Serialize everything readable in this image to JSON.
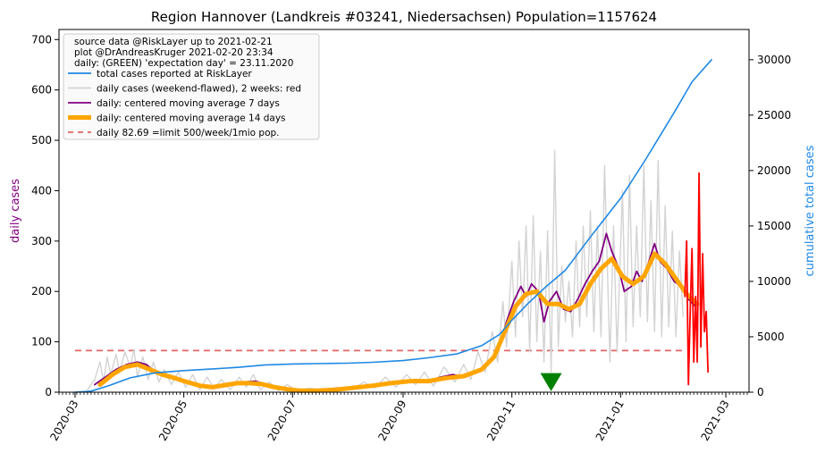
{
  "chart_data": {
    "type": "line",
    "title": "Region Hannover (Landkreis #03241, Niedersachsen) Population=1157624",
    "ylabel_left": "daily cases",
    "ylabel_right": "cumulative total cases",
    "ylim_left": [
      0,
      720
    ],
    "ylim_right": [
      0,
      32727
    ],
    "xlim": [
      "2020-02-21",
      "2021-03-14"
    ],
    "x_ticks": [
      "2020-03",
      "2020-05",
      "2020-07",
      "2020-09",
      "2020-11",
      "2021-01",
      "2021-03"
    ],
    "y_ticks_left": [
      0,
      100,
      200,
      300,
      400,
      500,
      600,
      700
    ],
    "y_ticks_right": [
      0,
      5000,
      10000,
      15000,
      20000,
      25000,
      30000
    ],
    "grid": false,
    "legend_position": "top-left",
    "legend_header": [
      "source data @RiskLayer up to 2021-02-21",
      "plot @DrAndreasKruger 2021-02-20 23:34",
      "daily: (GREEN) 'expectation day' = 23.11.2020"
    ],
    "legend": [
      {
        "label": "total cases reported at RiskLayer",
        "color": "#1e88e5",
        "style": "solid"
      },
      {
        "label": "daily cases (weekend-flawed), 2 weeks: red",
        "color": "#d3d3d3",
        "style": "solid"
      },
      {
        "label": "daily: centered moving average 7 days",
        "color": "#800080",
        "style": "solid"
      },
      {
        "label": "daily: centered moving average 14 days",
        "color": "#ffa500",
        "style": "thick"
      },
      {
        "label": "daily 82.69 =limit 500/week/1mio pop.",
        "color": "#e06666",
        "style": "dashed"
      }
    ],
    "limit_line": {
      "value": 82.69,
      "x_start": "2020-03-01",
      "x_end": "2021-02-06"
    },
    "expectation_day": "2020-11-23",
    "series": [
      {
        "name": "total cases reported at RiskLayer",
        "axis": "right",
        "color": "#1e88e5",
        "points": [
          [
            "2020-03-01",
            0
          ],
          [
            "2020-03-10",
            100
          ],
          [
            "2020-03-20",
            600
          ],
          [
            "2020-04-01",
            1300
          ],
          [
            "2020-04-15",
            1750
          ],
          [
            "2020-05-01",
            1950
          ],
          [
            "2020-05-15",
            2080
          ],
          [
            "2020-06-01",
            2250
          ],
          [
            "2020-06-15",
            2450
          ],
          [
            "2020-07-01",
            2550
          ],
          [
            "2020-07-15",
            2580
          ],
          [
            "2020-08-01",
            2620
          ],
          [
            "2020-08-15",
            2700
          ],
          [
            "2020-09-01",
            2850
          ],
          [
            "2020-09-15",
            3100
          ],
          [
            "2020-10-01",
            3450
          ],
          [
            "2020-10-15",
            4200
          ],
          [
            "2020-10-25",
            5200
          ],
          [
            "2020-11-01",
            6500
          ],
          [
            "2020-11-10",
            8000
          ],
          [
            "2020-11-20",
            9500
          ],
          [
            "2020-12-01",
            11000
          ],
          [
            "2020-12-15",
            14000
          ],
          [
            "2021-01-01",
            17500
          ],
          [
            "2021-01-15",
            21000
          ],
          [
            "2021-02-01",
            25500
          ],
          [
            "2021-02-10",
            28000
          ],
          [
            "2021-02-21",
            30000
          ]
        ]
      },
      {
        "name": "daily cases (weekend-flawed)",
        "axis": "left",
        "color": "#d3d3d3",
        "points": [
          [
            "2020-03-08",
            5
          ],
          [
            "2020-03-12",
            25
          ],
          [
            "2020-03-15",
            60
          ],
          [
            "2020-03-17",
            20
          ],
          [
            "2020-03-19",
            70
          ],
          [
            "2020-03-21",
            35
          ],
          [
            "2020-03-24",
            75
          ],
          [
            "2020-03-26",
            40
          ],
          [
            "2020-03-29",
            80
          ],
          [
            "2020-04-01",
            50
          ],
          [
            "2020-04-03",
            85
          ],
          [
            "2020-04-05",
            30
          ],
          [
            "2020-04-08",
            70
          ],
          [
            "2020-04-11",
            25
          ],
          [
            "2020-04-14",
            60
          ],
          [
            "2020-04-17",
            20
          ],
          [
            "2020-04-20",
            45
          ],
          [
            "2020-04-24",
            15
          ],
          [
            "2020-04-28",
            40
          ],
          [
            "2020-05-02",
            10
          ],
          [
            "2020-05-06",
            35
          ],
          [
            "2020-05-10",
            5
          ],
          [
            "2020-05-14",
            30
          ],
          [
            "2020-05-18",
            8
          ],
          [
            "2020-05-22",
            25
          ],
          [
            "2020-05-27",
            5
          ],
          [
            "2020-06-01",
            30
          ],
          [
            "2020-06-05",
            10
          ],
          [
            "2020-06-09",
            35
          ],
          [
            "2020-06-13",
            5
          ],
          [
            "2020-06-18",
            20
          ],
          [
            "2020-06-23",
            3
          ],
          [
            "2020-06-28",
            15
          ],
          [
            "2020-07-04",
            2
          ],
          [
            "2020-07-10",
            8
          ],
          [
            "2020-07-18",
            4
          ],
          [
            "2020-07-26",
            10
          ],
          [
            "2020-08-03",
            5
          ],
          [
            "2020-08-10",
            20
          ],
          [
            "2020-08-16",
            8
          ],
          [
            "2020-08-22",
            30
          ],
          [
            "2020-08-28",
            10
          ],
          [
            "2020-09-03",
            35
          ],
          [
            "2020-09-08",
            15
          ],
          [
            "2020-09-13",
            40
          ],
          [
            "2020-09-18",
            12
          ],
          [
            "2020-09-24",
            50
          ],
          [
            "2020-09-30",
            20
          ],
          [
            "2020-10-05",
            55
          ],
          [
            "2020-10-09",
            25
          ],
          [
            "2020-10-13",
            80
          ],
          [
            "2020-10-17",
            40
          ],
          [
            "2020-10-21",
            120
          ],
          [
            "2020-10-24",
            60
          ],
          [
            "2020-10-27",
            180
          ],
          [
            "2020-10-29",
            90
          ],
          [
            "2020-11-01",
            260
          ],
          [
            "2020-11-03",
            110
          ],
          [
            "2020-11-05",
            300
          ],
          [
            "2020-11-07",
            150
          ],
          [
            "2020-11-09",
            330
          ],
          [
            "2020-11-11",
            80
          ],
          [
            "2020-11-13",
            350
          ],
          [
            "2020-11-15",
            100
          ],
          [
            "2020-11-17",
            280
          ],
          [
            "2020-11-19",
            60
          ],
          [
            "2020-11-21",
            320
          ],
          [
            "2020-11-23",
            40
          ],
          [
            "2020-11-25",
            480
          ],
          [
            "2020-11-27",
            90
          ],
          [
            "2020-11-29",
            250
          ],
          [
            "2020-12-01",
            140
          ],
          [
            "2020-12-03",
            220
          ],
          [
            "2020-12-05",
            110
          ],
          [
            "2020-12-07",
            300
          ],
          [
            "2020-12-09",
            130
          ],
          [
            "2020-12-11",
            330
          ],
          [
            "2020-12-13",
            150
          ],
          [
            "2020-12-15",
            360
          ],
          [
            "2020-12-17",
            120
          ],
          [
            "2020-12-19",
            330
          ],
          [
            "2020-12-21",
            110
          ],
          [
            "2020-12-23",
            450
          ],
          [
            "2020-12-26",
            60
          ],
          [
            "2020-12-28",
            330
          ],
          [
            "2020-12-30",
            80
          ],
          [
            "2021-01-02",
            400
          ],
          [
            "2021-01-04",
            100
          ],
          [
            "2021-01-06",
            430
          ],
          [
            "2021-01-08",
            130
          ],
          [
            "2021-01-10",
            330
          ],
          [
            "2021-01-12",
            150
          ],
          [
            "2021-01-14",
            450
          ],
          [
            "2021-01-16",
            140
          ],
          [
            "2021-01-18",
            380
          ],
          [
            "2021-01-20",
            120
          ],
          [
            "2021-01-22",
            460
          ],
          [
            "2021-01-24",
            110
          ],
          [
            "2021-01-26",
            370
          ],
          [
            "2021-01-28",
            130
          ],
          [
            "2021-01-30",
            320
          ],
          [
            "2021-02-01",
            110
          ],
          [
            "2021-02-03",
            280
          ],
          [
            "2021-02-05",
            150
          ]
        ]
      },
      {
        "name": "daily cases last 2 weeks",
        "axis": "left",
        "color": "#ff0000",
        "points": [
          [
            "2021-02-06",
            190
          ],
          [
            "2021-02-07",
            300
          ],
          [
            "2021-02-08",
            15
          ],
          [
            "2021-02-09",
            160
          ],
          [
            "2021-02-10",
            285
          ],
          [
            "2021-02-11",
            60
          ],
          [
            "2021-02-12",
            190
          ],
          [
            "2021-02-13",
            60
          ],
          [
            "2021-02-14",
            435
          ],
          [
            "2021-02-15",
            90
          ],
          [
            "2021-02-16",
            275
          ],
          [
            "2021-02-17",
            120
          ],
          [
            "2021-02-18",
            160
          ],
          [
            "2021-02-19",
            40
          ]
        ]
      },
      {
        "name": "daily: centered moving average 7 days",
        "axis": "left",
        "color": "#800080",
        "points": [
          [
            "2020-03-12",
            15
          ],
          [
            "2020-03-18",
            30
          ],
          [
            "2020-03-24",
            45
          ],
          [
            "2020-03-30",
            55
          ],
          [
            "2020-04-05",
            60
          ],
          [
            "2020-04-10",
            55
          ],
          [
            "2020-04-15",
            40
          ],
          [
            "2020-04-20",
            32
          ],
          [
            "2020-04-25",
            28
          ],
          [
            "2020-05-01",
            22
          ],
          [
            "2020-05-08",
            15
          ],
          [
            "2020-05-15",
            10
          ],
          [
            "2020-05-22",
            12
          ],
          [
            "2020-05-28",
            15
          ],
          [
            "2020-06-03",
            20
          ],
          [
            "2020-06-10",
            22
          ],
          [
            "2020-06-17",
            15
          ],
          [
            "2020-06-24",
            8
          ],
          [
            "2020-07-01",
            5
          ],
          [
            "2020-07-10",
            3
          ],
          [
            "2020-07-20",
            4
          ],
          [
            "2020-07-30",
            6
          ],
          [
            "2020-08-08",
            10
          ],
          [
            "2020-08-16",
            14
          ],
          [
            "2020-08-24",
            18
          ],
          [
            "2020-09-01",
            22
          ],
          [
            "2020-09-08",
            25
          ],
          [
            "2020-09-15",
            22
          ],
          [
            "2020-09-22",
            30
          ],
          [
            "2020-09-29",
            35
          ],
          [
            "2020-10-06",
            30
          ],
          [
            "2020-10-12",
            40
          ],
          [
            "2020-10-18",
            55
          ],
          [
            "2020-10-24",
            80
          ],
          [
            "2020-10-29",
            140
          ],
          [
            "2020-11-02",
            180
          ],
          [
            "2020-11-06",
            210
          ],
          [
            "2020-11-09",
            190
          ],
          [
            "2020-11-12",
            215
          ],
          [
            "2020-11-16",
            200
          ],
          [
            "2020-11-19",
            140
          ],
          [
            "2020-11-22",
            180
          ],
          [
            "2020-11-26",
            200
          ],
          [
            "2020-11-30",
            165
          ],
          [
            "2020-12-04",
            160
          ],
          [
            "2020-12-08",
            185
          ],
          [
            "2020-12-12",
            215
          ],
          [
            "2020-12-16",
            240
          ],
          [
            "2020-12-20",
            260
          ],
          [
            "2020-12-24",
            315
          ],
          [
            "2020-12-27",
            280
          ],
          [
            "2020-12-31",
            245
          ],
          [
            "2021-01-03",
            200
          ],
          [
            "2021-01-07",
            210
          ],
          [
            "2021-01-10",
            240
          ],
          [
            "2021-01-13",
            220
          ],
          [
            "2021-01-16",
            250
          ],
          [
            "2021-01-20",
            295
          ],
          [
            "2021-01-23",
            260
          ],
          [
            "2021-01-27",
            245
          ],
          [
            "2021-01-31",
            220
          ],
          [
            "2021-02-04",
            210
          ],
          [
            "2021-02-08",
            185
          ],
          [
            "2021-02-12",
            170
          ]
        ]
      },
      {
        "name": "daily: centered moving average 14 days",
        "axis": "left",
        "color": "#ffa500",
        "points": [
          [
            "2020-03-15",
            15
          ],
          [
            "2020-03-22",
            35
          ],
          [
            "2020-03-29",
            50
          ],
          [
            "2020-04-05",
            55
          ],
          [
            "2020-04-12",
            45
          ],
          [
            "2020-04-19",
            35
          ],
          [
            "2020-04-26",
            28
          ],
          [
            "2020-05-03",
            20
          ],
          [
            "2020-05-10",
            13
          ],
          [
            "2020-05-17",
            10
          ],
          [
            "2020-05-24",
            14
          ],
          [
            "2020-05-31",
            18
          ],
          [
            "2020-06-07",
            18
          ],
          [
            "2020-06-14",
            16
          ],
          [
            "2020-06-21",
            10
          ],
          [
            "2020-06-28",
            6
          ],
          [
            "2020-07-05",
            3
          ],
          [
            "2020-07-15",
            3
          ],
          [
            "2020-07-25",
            5
          ],
          [
            "2020-08-05",
            9
          ],
          [
            "2020-08-15",
            13
          ],
          [
            "2020-08-25",
            18
          ],
          [
            "2020-09-05",
            22
          ],
          [
            "2020-09-15",
            22
          ],
          [
            "2020-09-25",
            28
          ],
          [
            "2020-10-05",
            32
          ],
          [
            "2020-10-15",
            45
          ],
          [
            "2020-10-22",
            70
          ],
          [
            "2020-10-28",
            120
          ],
          [
            "2020-11-03",
            170
          ],
          [
            "2020-11-09",
            195
          ],
          [
            "2020-11-15",
            200
          ],
          [
            "2020-11-21",
            175
          ],
          [
            "2020-11-27",
            175
          ],
          [
            "2020-12-03",
            165
          ],
          [
            "2020-12-09",
            175
          ],
          [
            "2020-12-15",
            215
          ],
          [
            "2020-12-21",
            245
          ],
          [
            "2020-12-27",
            265
          ],
          [
            "2021-01-02",
            230
          ],
          [
            "2021-01-08",
            215
          ],
          [
            "2021-01-14",
            230
          ],
          [
            "2021-01-20",
            275
          ],
          [
            "2021-01-26",
            255
          ],
          [
            "2021-02-01",
            225
          ],
          [
            "2021-02-07",
            195
          ],
          [
            "2021-02-13",
            175
          ]
        ]
      }
    ]
  }
}
